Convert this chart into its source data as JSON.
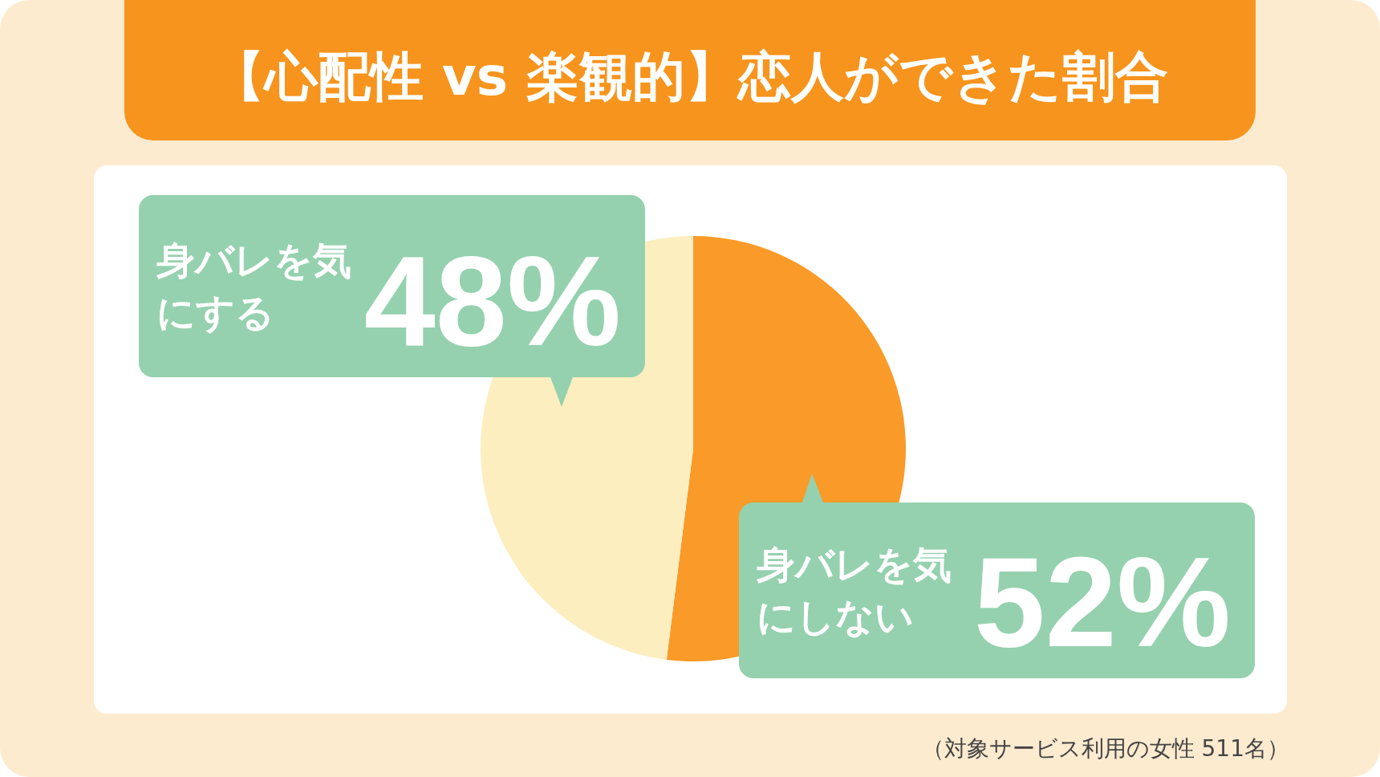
{
  "chart_data": {
    "type": "pie",
    "title": "【心配性 vs 楽観的】恋人ができた割合",
    "categories": [
      "身バレを気にしない",
      "身バレを気にする"
    ],
    "values": [
      52,
      48
    ],
    "colors": [
      "#fa9a28",
      "#fdeec0"
    ],
    "value_labels": [
      "52%",
      "48%"
    ],
    "annotations": [
      "（対象サービス利用の女性 511名）"
    ]
  }
}
